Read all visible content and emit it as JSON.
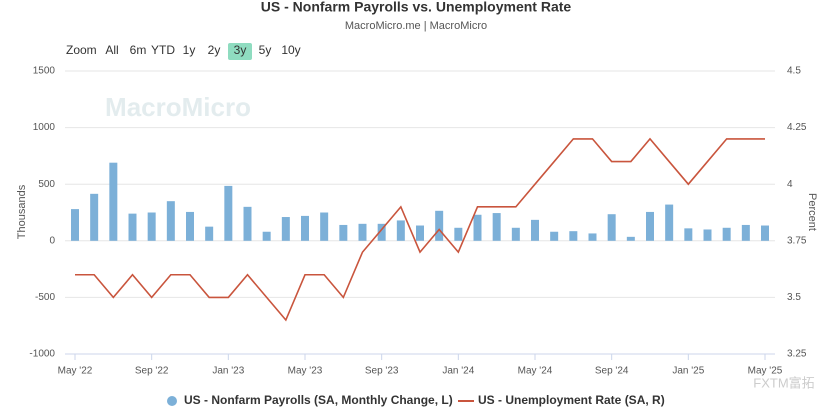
{
  "chart_data": {
    "type": "bar-line",
    "title": "US - Nonfarm Payrolls vs. Unemployment Rate",
    "subtitle": "MacroMicro.me | MacroMicro",
    "watermark": "MacroMicro",
    "corner_mark": "FXTM富拓",
    "range_selector": {
      "label": "Zoom",
      "buttons": [
        "All",
        "6m",
        "YTD",
        "1y",
        "2y",
        "3y",
        "5y",
        "10y"
      ],
      "selected": 5
    },
    "y_label": "Thousands",
    "y2_label": "Percent",
    "categories": [
      "May '22",
      null,
      null,
      null,
      "Sep '22",
      null,
      null,
      null,
      "Jan '23",
      null,
      null,
      null,
      "May '23",
      null,
      null,
      null,
      "Sep '23",
      null,
      null,
      null,
      "Jan '24",
      null,
      null,
      null,
      "May '24",
      null,
      null,
      null,
      "Sep '24",
      null,
      null,
      null,
      "Jan '25",
      null,
      null,
      null,
      "May '25"
    ],
    "series": [
      {
        "name": "US - Nonfarm Payrolls (SA, Monthly Change, L)",
        "color": "#7cb0d8",
        "kind": "bar",
        "axis": "y",
        "values": [
          280,
          415,
          690,
          240,
          250,
          350,
          255,
          125,
          485,
          300,
          80,
          210,
          220,
          250,
          140,
          150,
          150,
          180,
          135,
          265,
          115,
          230,
          245,
          115,
          185,
          80,
          85,
          65,
          235,
          35,
          255,
          320,
          110,
          100,
          115,
          140,
          135
        ]
      },
      {
        "name": "US - Unemployment Rate (SA, R)",
        "color": "#c9553d",
        "kind": "line",
        "axis": "y2",
        "values": [
          3.6,
          3.6,
          3.5,
          3.6,
          3.5,
          3.6,
          3.6,
          3.5,
          3.5,
          3.6,
          3.5,
          3.4,
          3.6,
          3.6,
          3.5,
          3.7,
          3.8,
          3.9,
          3.7,
          3.8,
          3.7,
          3.9,
          3.9,
          3.9,
          4.0,
          4.1,
          4.2,
          4.2,
          4.1,
          4.1,
          4.2,
          4.1,
          4.0,
          4.1,
          4.2,
          4.2,
          4.2
        ]
      }
    ],
    "ylim": [
      -1000,
      1500
    ],
    "yticks": [
      -1000,
      -500,
      0,
      500,
      1000,
      1500
    ],
    "y2lim": [
      3.25,
      4.5
    ],
    "y2ticks": [
      3.25,
      3.5,
      3.75,
      4,
      4.25,
      4.5
    ],
    "grid": true
  }
}
